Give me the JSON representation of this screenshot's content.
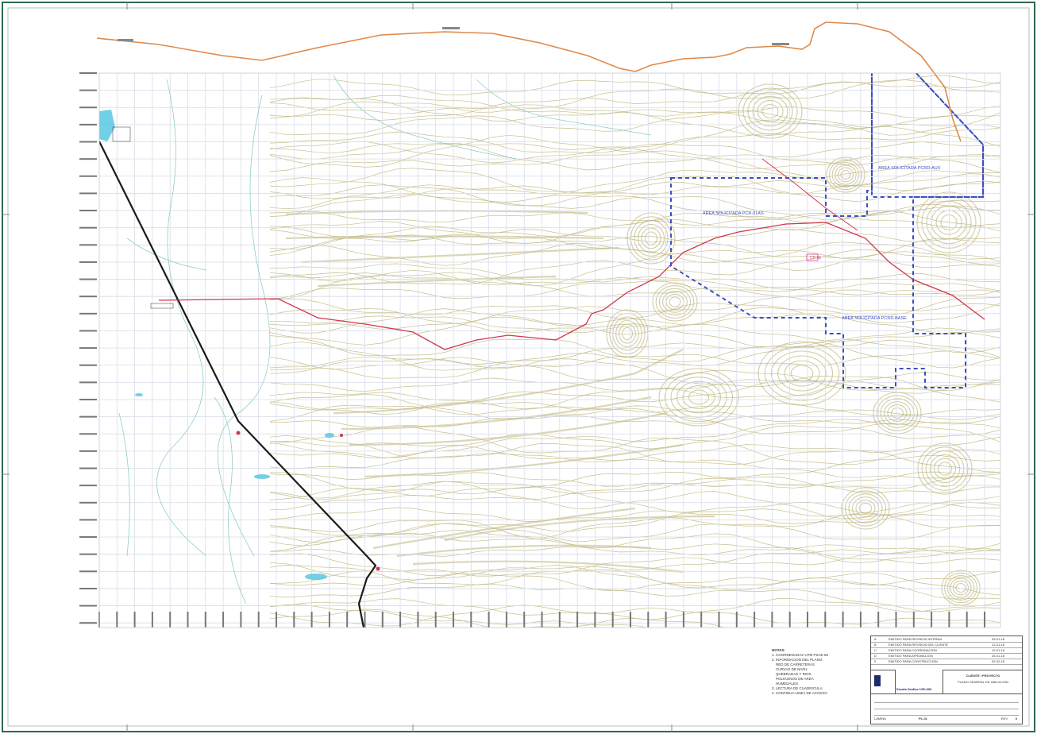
{
  "map": {
    "area_labels": [
      "AREA SOLICITADA PCRD-AUX",
      "AREA SOLICITADA PCR-01AS",
      "AREA SOLICITADA PCRD-BASE"
    ],
    "site_marker": "CP-01"
  },
  "notes": {
    "title": "NOTAS:",
    "lines": [
      "1. COORDENADAS UTM PSAD 56",
      "2. INFORMACION DEL PLANO:",
      "    RED DE CARRETERAS",
      "    CURVAS DE NIVEL",
      "    QUEBRADAS Y RIOS",
      "    POLIGONOS DE AREA",
      "    HUMEDALES",
      "3. LECTURA DE CUADRICULA",
      "4. CONTINUA LINEA DE ACCESO"
    ]
  },
  "title_block": {
    "project": "CLIENTE / PROYECTO",
    "drawing_title": "PLANO GENERAL DE UBICACION",
    "scale_label": "Escala Grafica 1/50,000",
    "revision_rows": [
      {
        "rev": "A",
        "desc": "EMITIDO PARA REVISION INTERNA",
        "date": "05-01-18"
      },
      {
        "rev": "B",
        "desc": "EMITIDO PARA REVISION DEL CLIENTE",
        "date": "12-01-18"
      },
      {
        "rev": "C",
        "desc": "EMITIDO PARA COORDINACION",
        "date": "19-01-18"
      },
      {
        "rev": "D",
        "desc": "EMITIDO PARA APROBACION",
        "date": "26-01-18"
      },
      {
        "rev": "0",
        "desc": "EMITIDO PARA CONSTRUCCION",
        "date": "02-02-18"
      }
    ],
    "sheet_label": "LAMINA",
    "sheet_number": "PL-01",
    "rev_label": "REV",
    "rev_value": "0"
  },
  "colors": {
    "frame": "#2d6a4f",
    "contour": "#b5aa6a",
    "grid": "#d9dce8",
    "road_black": "#1a1a1a",
    "road_red": "#d1364f",
    "pipeline_orange": "#e0894a",
    "boundary_blue": "#3a4fc2",
    "water": "#4dc3e0"
  }
}
